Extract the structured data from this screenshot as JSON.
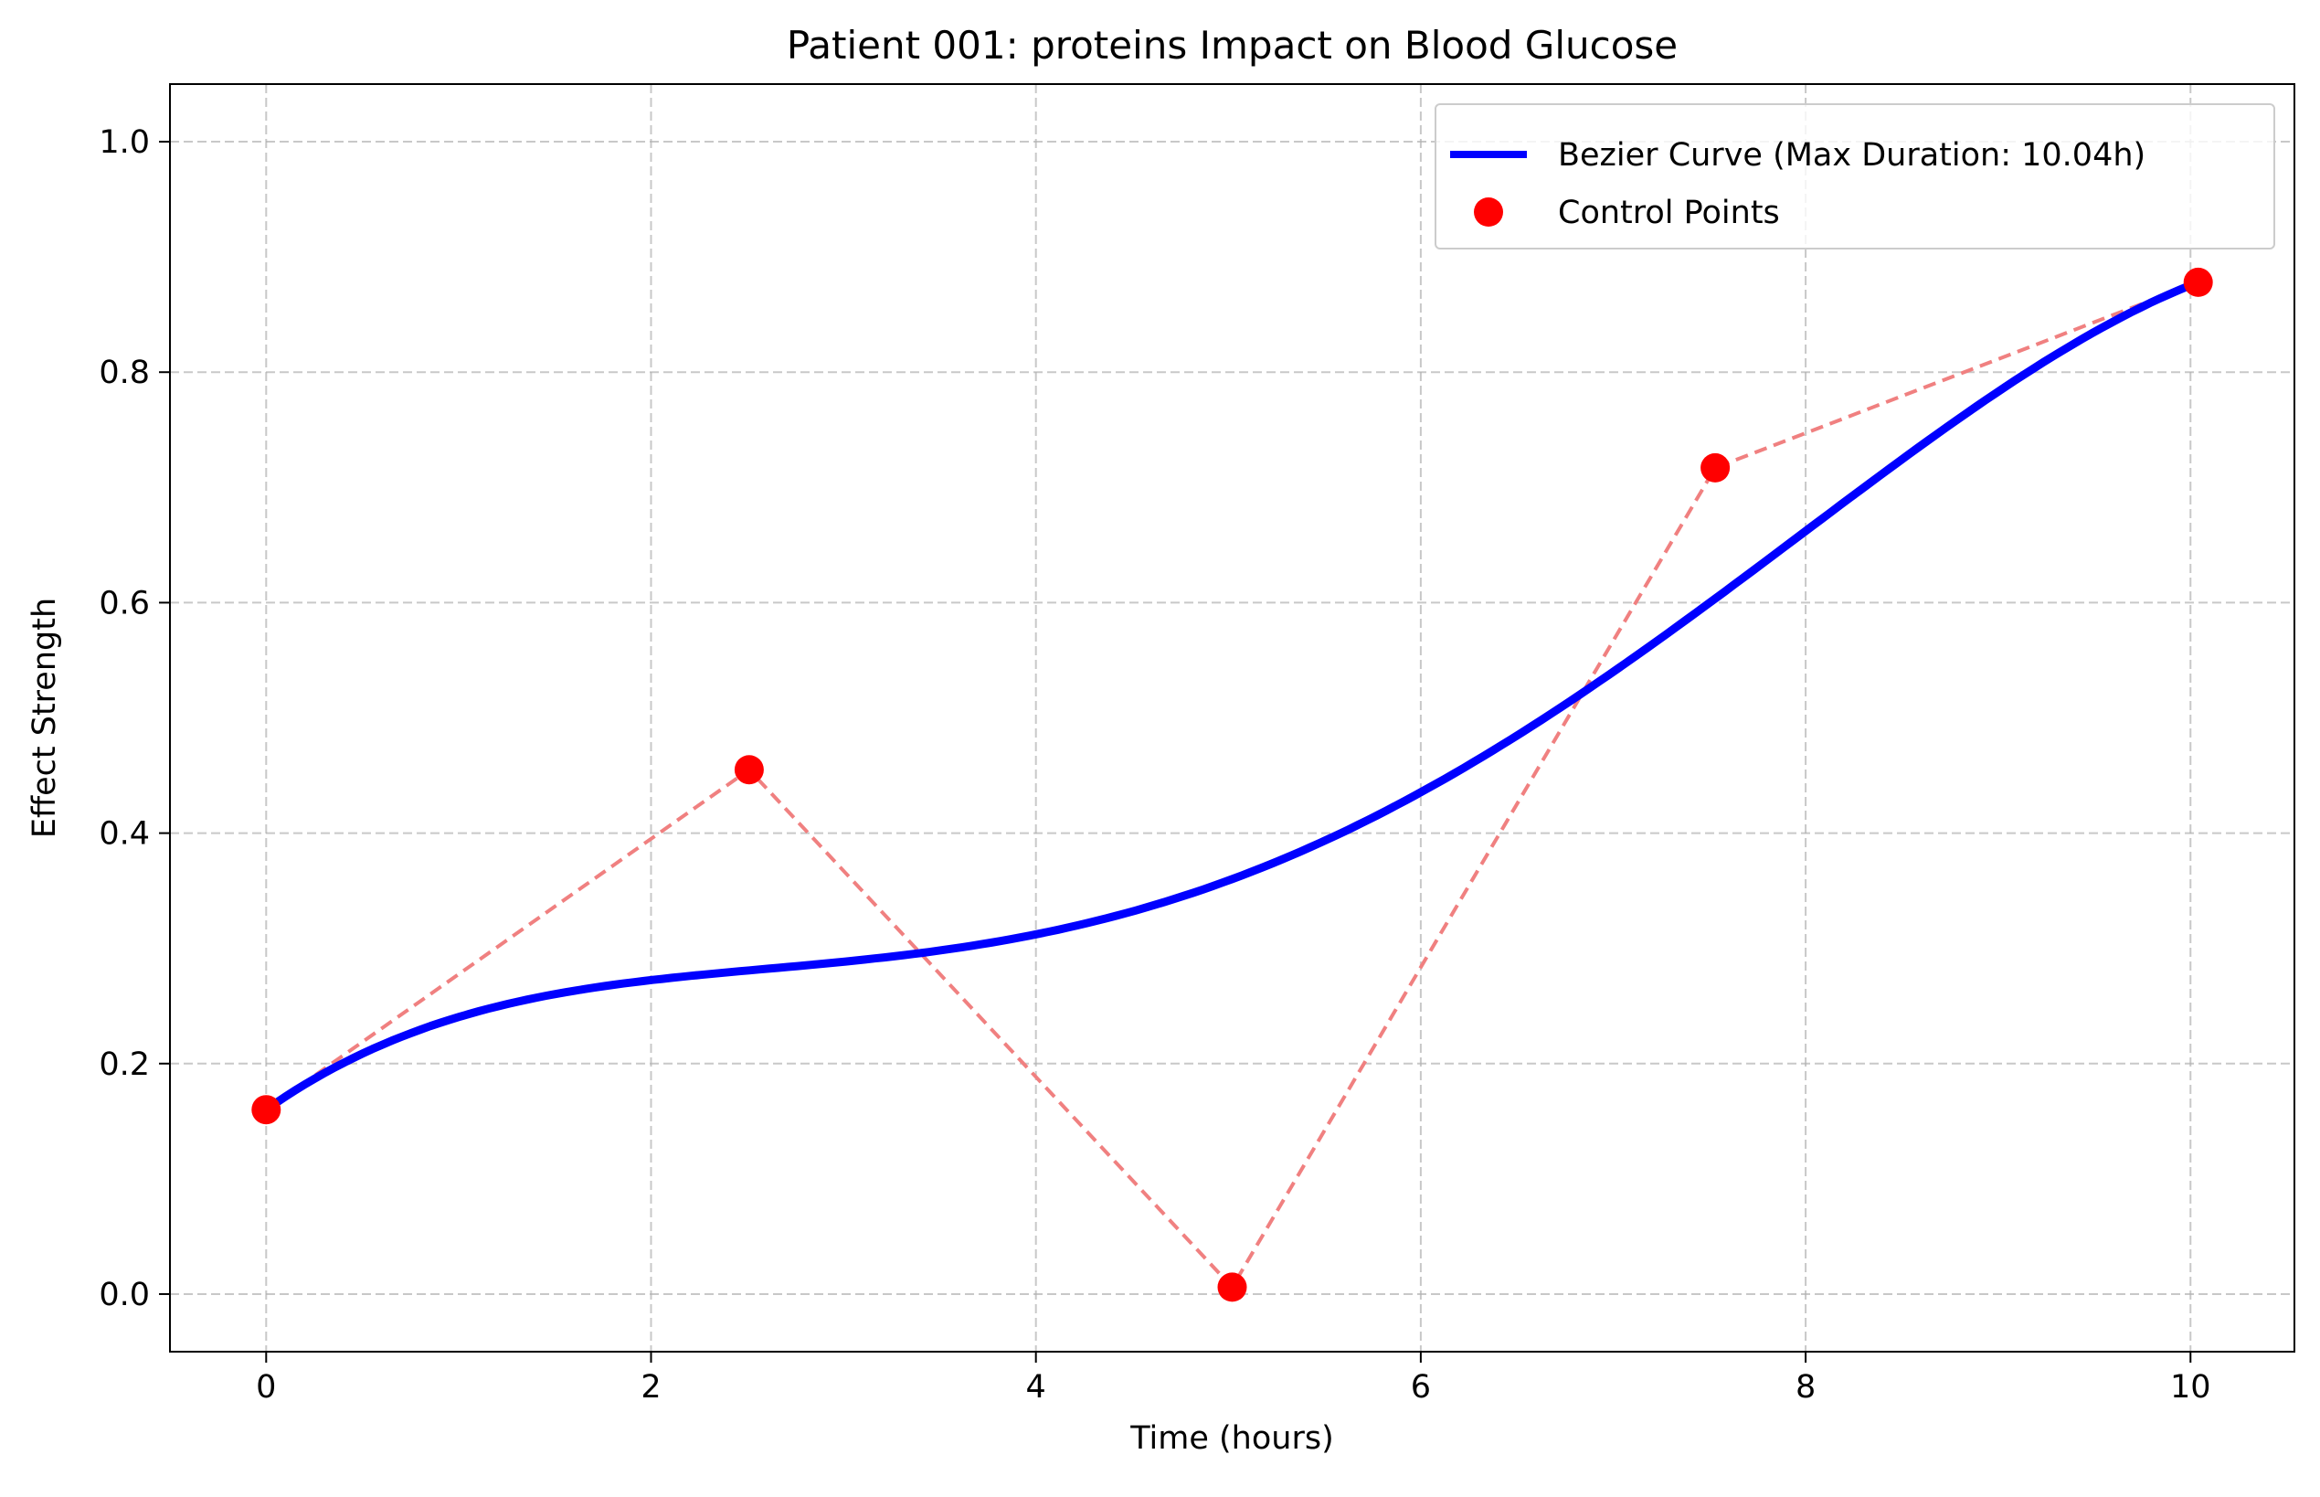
{
  "chart_data": {
    "type": "line",
    "title": "Patient 001: proteins Impact on Blood Glucose",
    "xlabel": "Time (hours)",
    "ylabel": "Effect Strength",
    "xlim": [
      -0.5,
      10.54
    ],
    "ylim": [
      -0.05,
      1.05
    ],
    "xticks": [
      0,
      2,
      4,
      6,
      8,
      10
    ],
    "xtick_labels": [
      "0",
      "2",
      "4",
      "6",
      "8",
      "10"
    ],
    "yticks": [
      0.0,
      0.2,
      0.4,
      0.6,
      0.8,
      1.0
    ],
    "ytick_labels": [
      "0.0",
      "0.2",
      "0.4",
      "0.6",
      "0.8",
      "1.0"
    ],
    "grid": true,
    "legend_position": "top-right",
    "series": [
      {
        "name": "Bezier Curve (Max Duration: 10.04h)",
        "kind": "bezier-curve",
        "color": "#0000ff"
      },
      {
        "name": "Control Points",
        "kind": "points",
        "color": "#ff0000",
        "connector_color": "#f08080",
        "x": [
          0,
          2.51,
          5.02,
          7.53,
          10.04
        ],
        "y": [
          0.16,
          0.455,
          0.006,
          0.717,
          0.878
        ]
      }
    ]
  }
}
